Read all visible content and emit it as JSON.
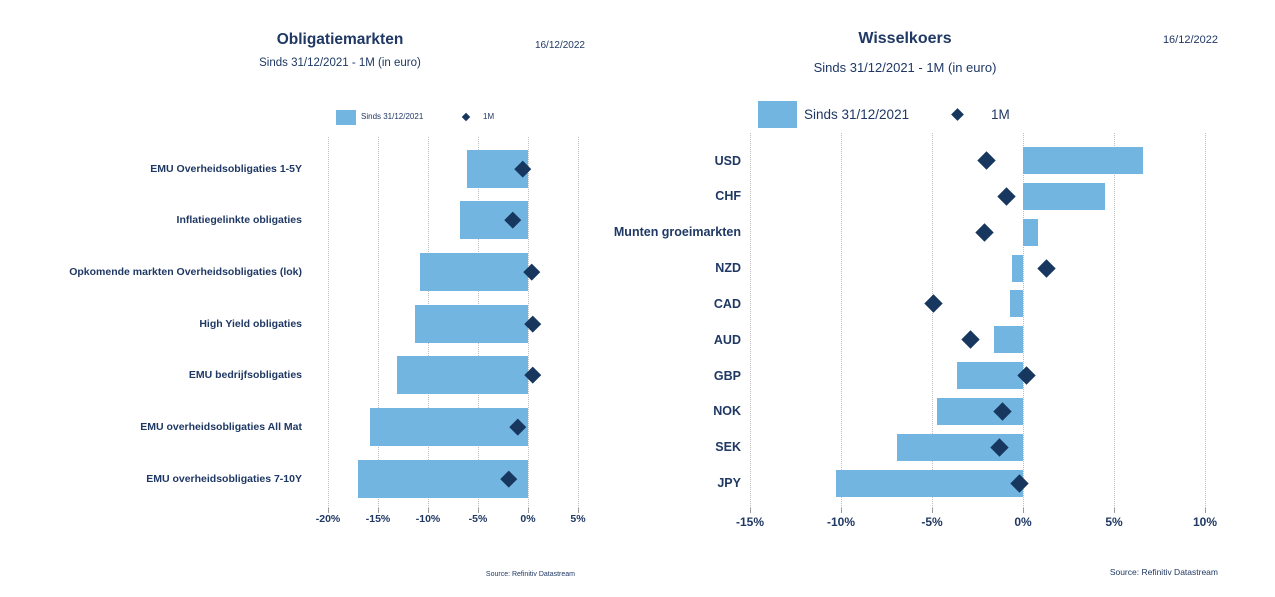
{
  "colors": {
    "bar": "#72B5E1",
    "marker": "#17375E",
    "text": "#1F3864",
    "gridline": "#BDBDBD",
    "background": "#FFFFFF"
  },
  "chart_data": [
    {
      "id": "bonds",
      "type": "bar",
      "orientation": "horizontal",
      "title": "Obligatiemarkten",
      "subtitle": "Sinds 31/12/2021 - 1M (in euro)",
      "date_label": "16/12/2022",
      "source": "Source: Refinitiv Datastream",
      "legend_position": "top",
      "grid": "vertical-dotted",
      "legend": [
        {
          "label": "Sinds 31/12/2021",
          "marker": "bar"
        },
        {
          "label": "1M",
          "marker": "diamond"
        }
      ],
      "xlim": [
        -22,
        6.5
      ],
      "x_ticks": [
        {
          "value": -20,
          "label": "-20%"
        },
        {
          "value": -15,
          "label": "-15%"
        },
        {
          "value": -10,
          "label": "-10%"
        },
        {
          "value": -5,
          "label": "-5%"
        },
        {
          "value": 0,
          "label": "0%"
        },
        {
          "value": 5,
          "label": "5%"
        }
      ],
      "categories": [
        "EMU Overheidsobligaties 1-5Y",
        "Inflatiegelinkte obligaties",
        "Opkomende markten Overheidsobligaties (lok)",
        "High Yield obligaties",
        "EMU bedrijfsobligaties",
        "EMU overheidsobligaties All Mat",
        "EMU overheidsobligaties 7-10Y"
      ],
      "series": [
        {
          "name": "Sinds 31/12/2021",
          "type": "bar",
          "values": [
            -6.1,
            -6.8,
            -10.8,
            -11.3,
            -13.1,
            -15.8,
            -17.0
          ]
        },
        {
          "name": "1M",
          "type": "diamond",
          "values": [
            -0.5,
            -1.5,
            0.4,
            0.5,
            0.5,
            -1.0,
            -1.9
          ]
        }
      ]
    },
    {
      "id": "fx",
      "type": "bar",
      "orientation": "horizontal",
      "title": "Wisselkoers",
      "subtitle": "Sinds 31/12/2021 - 1M (in euro)",
      "date_label": "16/12/2022",
      "source": "Source: Refinitiv Datastream",
      "legend_position": "top",
      "grid": "vertical-dotted",
      "legend": [
        {
          "label": "Sinds 31/12/2021",
          "marker": "bar"
        },
        {
          "label": "1M",
          "marker": "diamond"
        }
      ],
      "xlim": [
        -15.8,
        10.7
      ],
      "x_ticks": [
        {
          "value": -15,
          "label": "-15%"
        },
        {
          "value": -10,
          "label": "-10%"
        },
        {
          "value": -5,
          "label": "-5%"
        },
        {
          "value": 0,
          "label": "0%"
        },
        {
          "value": 5,
          "label": "5%"
        },
        {
          "value": 10,
          "label": "10%"
        }
      ],
      "categories": [
        "USD",
        "CHF",
        "Munten groeimarkten",
        "NZD",
        "CAD",
        "AUD",
        "GBP",
        "NOK",
        "SEK",
        "JPY"
      ],
      "series": [
        {
          "name": "Sinds 31/12/2021",
          "type": "bar",
          "values": [
            6.6,
            4.5,
            0.8,
            -0.6,
            -0.7,
            -1.6,
            -3.6,
            -4.7,
            -6.9,
            -10.3
          ]
        },
        {
          "name": "1M",
          "type": "diamond",
          "values": [
            -2.0,
            -0.9,
            -2.1,
            1.3,
            -4.9,
            -2.9,
            0.2,
            -1.1,
            -1.3,
            -0.2
          ]
        }
      ]
    }
  ]
}
